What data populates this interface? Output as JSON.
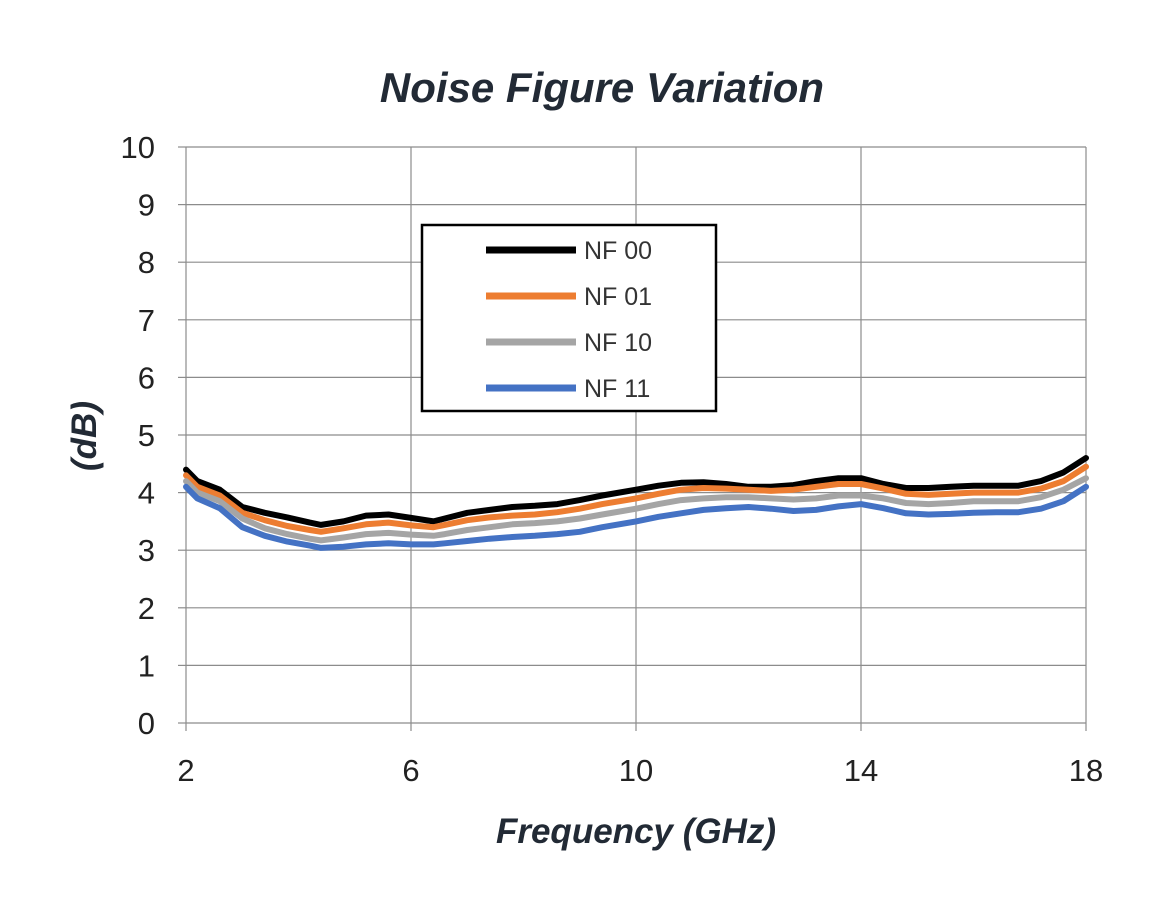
{
  "chart_data": {
    "type": "line",
    "title": "Noise Figure Variation",
    "xlabel": "Frequency (GHz)",
    "ylabel": "(dB)",
    "xlim": [
      2,
      18
    ],
    "ylim": [
      0,
      10
    ],
    "x_ticks": [
      2,
      6,
      10,
      14,
      18
    ],
    "y_ticks": [
      0,
      1,
      2,
      3,
      4,
      5,
      6,
      7,
      8,
      9,
      10
    ],
    "grid": true,
    "legend_position": "top-center",
    "x": [
      2.0,
      2.2,
      2.6,
      3.0,
      3.4,
      3.8,
      4.2,
      4.4,
      4.8,
      5.2,
      5.6,
      6.0,
      6.4,
      6.6,
      7.0,
      7.4,
      7.8,
      8.2,
      8.6,
      9.0,
      9.4,
      10.0,
      10.4,
      10.8,
      11.2,
      11.6,
      12.0,
      12.4,
      12.8,
      13.2,
      13.6,
      14.0,
      14.4,
      14.8,
      15.2,
      15.6,
      16.0,
      16.4,
      16.8,
      17.2,
      17.6,
      18.0
    ],
    "series": [
      {
        "name": "NF 00",
        "color": "#000000",
        "values": [
          4.4,
          4.2,
          4.05,
          3.75,
          3.65,
          3.57,
          3.48,
          3.44,
          3.5,
          3.6,
          3.62,
          3.56,
          3.5,
          3.55,
          3.65,
          3.7,
          3.75,
          3.77,
          3.8,
          3.87,
          3.95,
          4.05,
          4.12,
          4.17,
          4.18,
          4.15,
          4.1,
          4.1,
          4.13,
          4.2,
          4.25,
          4.25,
          4.15,
          4.08,
          4.08,
          4.1,
          4.12,
          4.12,
          4.12,
          4.2,
          4.35,
          4.6
        ]
      },
      {
        "name": "NF 01",
        "color": "#ed7d31",
        "values": [
          4.3,
          4.1,
          3.95,
          3.65,
          3.52,
          3.42,
          3.35,
          3.32,
          3.38,
          3.45,
          3.48,
          3.43,
          3.4,
          3.44,
          3.52,
          3.57,
          3.6,
          3.62,
          3.66,
          3.72,
          3.8,
          3.9,
          3.98,
          4.05,
          4.08,
          4.07,
          4.05,
          4.03,
          4.05,
          4.1,
          4.15,
          4.15,
          4.07,
          3.98,
          3.96,
          3.98,
          4.0,
          4.0,
          4.0,
          4.07,
          4.2,
          4.45
        ]
      },
      {
        "name": "NF 10",
        "color": "#a5a5a5",
        "values": [
          4.2,
          4.0,
          3.85,
          3.55,
          3.38,
          3.28,
          3.2,
          3.17,
          3.22,
          3.28,
          3.3,
          3.27,
          3.25,
          3.28,
          3.35,
          3.4,
          3.45,
          3.47,
          3.5,
          3.55,
          3.62,
          3.72,
          3.8,
          3.87,
          3.9,
          3.92,
          3.92,
          3.9,
          3.88,
          3.9,
          3.95,
          3.95,
          3.9,
          3.82,
          3.8,
          3.82,
          3.85,
          3.85,
          3.85,
          3.92,
          4.05,
          4.25
        ]
      },
      {
        "name": "NF 11",
        "color": "#4472c4",
        "values": [
          4.1,
          3.9,
          3.73,
          3.4,
          3.25,
          3.15,
          3.08,
          3.04,
          3.06,
          3.1,
          3.12,
          3.1,
          3.1,
          3.12,
          3.16,
          3.2,
          3.23,
          3.25,
          3.28,
          3.32,
          3.4,
          3.5,
          3.58,
          3.64,
          3.7,
          3.73,
          3.75,
          3.72,
          3.68,
          3.7,
          3.76,
          3.8,
          3.73,
          3.64,
          3.62,
          3.63,
          3.65,
          3.66,
          3.66,
          3.72,
          3.85,
          4.1
        ]
      }
    ]
  }
}
